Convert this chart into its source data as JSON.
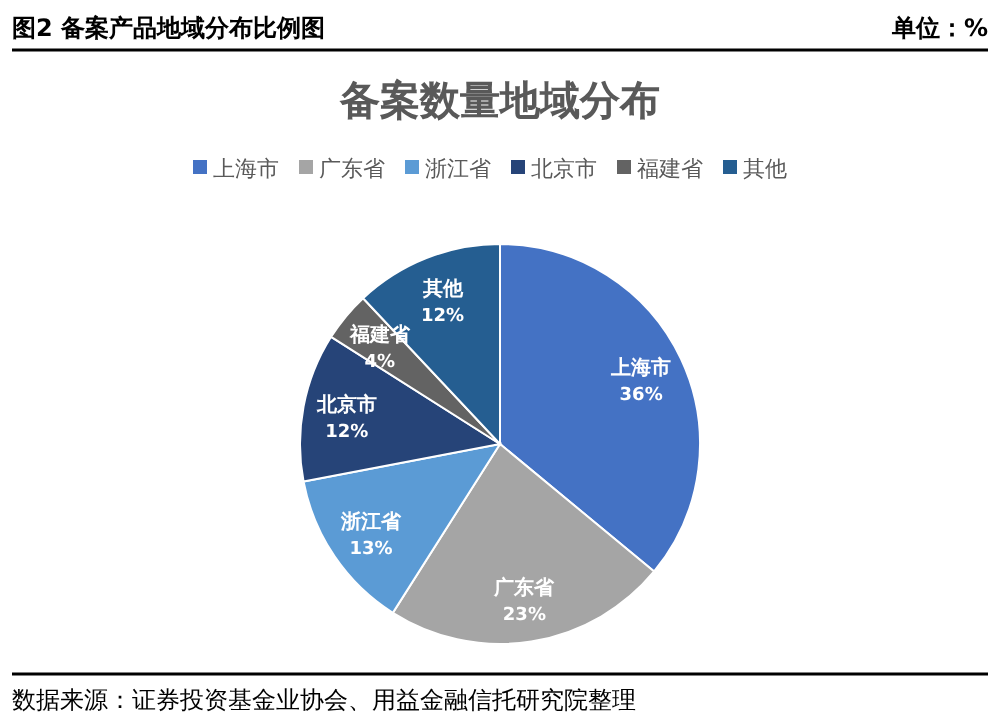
{
  "chart_data": {
    "type": "pie",
    "title": "备案数量地域分布",
    "annotations": [
      "图2 备案产品地域分布比例图",
      "单位：%",
      "数据来源：证券投资基金业协会、用益金融信托研究院整理"
    ],
    "categories": [
      "上海市",
      "广东省",
      "浙江省",
      "北京市",
      "福建省",
      "其他"
    ],
    "values": [
      36,
      23,
      13,
      12,
      4,
      12
    ],
    "colors": [
      "#4472c4",
      "#a5a5a5",
      "#5b9bd5",
      "#264478",
      "#636363",
      "#255e91"
    ],
    "value_labels": [
      "36%",
      "23%",
      "13%",
      "12%",
      "4%",
      "12%"
    ],
    "legend": "top"
  }
}
